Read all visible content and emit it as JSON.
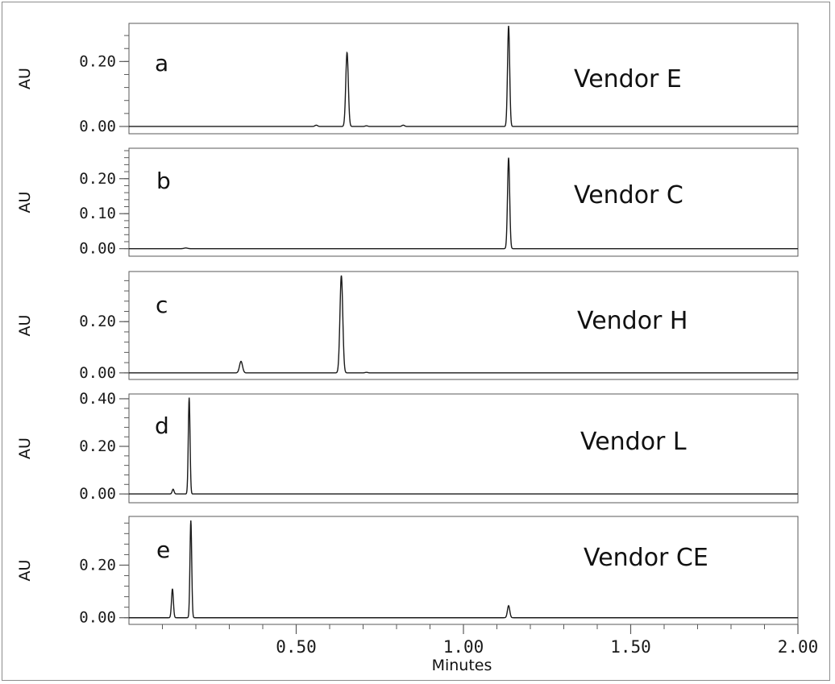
{
  "chart_data": {
    "type": "line",
    "xlabel": "Minutes",
    "xlim": [
      0.0,
      2.0
    ],
    "x_ticks": [
      0.5,
      1.0,
      1.5,
      2.0
    ],
    "x_tick_labels": [
      "0.50",
      "1.00",
      "1.50",
      "2.00"
    ],
    "ylabel": "AU",
    "grid": false,
    "panels": [
      {
        "letter": "a",
        "name": "Vendor E",
        "ylim": [
          -0.01,
          0.31
        ],
        "y_ticks": [
          0.0,
          0.2
        ],
        "y_tick_labels": [
          "0.00",
          "0.20"
        ],
        "peaks": [
          {
            "t": 0.56,
            "h": 0.004,
            "w": 0.004
          },
          {
            "t": 0.652,
            "h": 0.228,
            "w": 0.0038
          },
          {
            "t": 0.71,
            "h": 0.002,
            "w": 0.004
          },
          {
            "t": 0.82,
            "h": 0.004,
            "w": 0.004
          },
          {
            "t": 1.135,
            "h": 0.31,
            "w": 0.0032
          }
        ]
      },
      {
        "letter": "b",
        "name": "Vendor C",
        "ylim": [
          -0.01,
          0.28
        ],
        "y_ticks": [
          0.0,
          0.1,
          0.2
        ],
        "y_tick_labels": [
          "0.00",
          "0.10",
          "0.20"
        ],
        "peaks": [
          {
            "t": 0.17,
            "h": 0.002,
            "w": 0.005
          },
          {
            "t": 1.135,
            "h": 0.26,
            "w": 0.0032
          }
        ]
      },
      {
        "letter": "c",
        "name": "Vendor H",
        "ylim": [
          -0.01,
          0.38
        ],
        "y_ticks": [
          0.0,
          0.2
        ],
        "y_tick_labels": [
          "0.00",
          "0.20"
        ],
        "peaks": [
          {
            "t": 0.335,
            "h": 0.045,
            "w": 0.0045
          },
          {
            "t": 0.635,
            "h": 0.38,
            "w": 0.0042
          },
          {
            "t": 0.71,
            "h": 0.002,
            "w": 0.004
          }
        ]
      },
      {
        "letter": "d",
        "name": "Vendor L",
        "ylim": [
          -0.02,
          0.41
        ],
        "y_ticks": [
          0.0,
          0.2,
          0.4
        ],
        "y_tick_labels": [
          "0.00",
          "0.20",
          "0.40"
        ],
        "peaks": [
          {
            "t": 0.132,
            "h": 0.02,
            "w": 0.0028
          },
          {
            "t": 0.18,
            "h": 0.405,
            "w": 0.0026
          }
        ]
      },
      {
        "letter": "e",
        "name": "Vendor CE",
        "ylim": [
          -0.01,
          0.37
        ],
        "y_ticks": [
          0.0,
          0.2
        ],
        "y_tick_labels": [
          "0.00",
          "0.20"
        ],
        "peaks": [
          {
            "t": 0.13,
            "h": 0.11,
            "w": 0.0028
          },
          {
            "t": 0.185,
            "h": 0.37,
            "w": 0.0026
          },
          {
            "t": 1.135,
            "h": 0.046,
            "w": 0.0035
          }
        ]
      }
    ]
  },
  "colors": {
    "trace": "#1a1a1a",
    "axis": "#5a5a5a",
    "frame": "#8c8c8c"
  }
}
